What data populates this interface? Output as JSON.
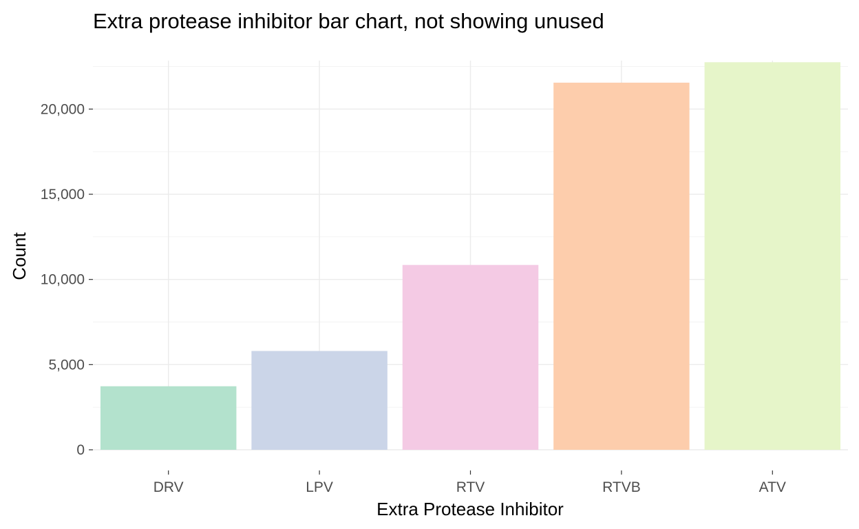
{
  "chart_data": {
    "type": "bar",
    "title": "Extra protease inhibitor bar chart, not showing unused",
    "xlabel": "Extra Protease Inhibitor",
    "ylabel": "Count",
    "categories": [
      "DRV",
      "LPV",
      "RTV",
      "RTVB",
      "ATV"
    ],
    "values": [
      3730,
      5800,
      10850,
      21550,
      22750
    ],
    "colors": [
      "#b3e2cd",
      "#cbd5e8",
      "#f4cae4",
      "#fdcdac",
      "#e6f5c9"
    ],
    "ylim": [
      0,
      22750
    ],
    "yticks": [
      0,
      5000,
      10000,
      15000,
      20000
    ],
    "ytick_labels": [
      "0",
      "5,000",
      "10,000",
      "15,000",
      "20,000"
    ],
    "grid": true,
    "legend": "none"
  }
}
